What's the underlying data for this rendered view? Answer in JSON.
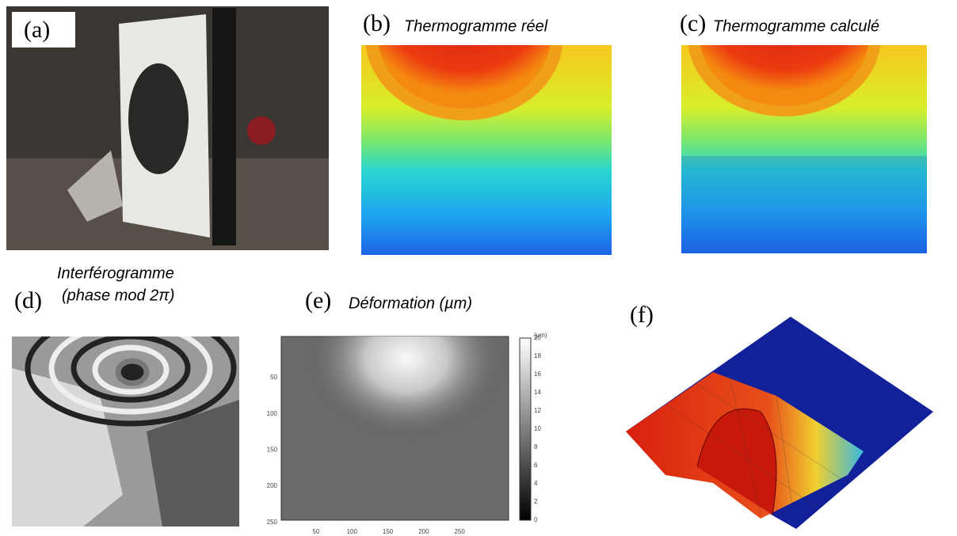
{
  "panels": [
    {
      "label": "(a)"
    },
    {
      "label": "(b)",
      "title": "Thermogramme réel"
    },
    {
      "label": "(c)",
      "title": "Thermogramme calculé"
    },
    {
      "label": "(d)",
      "title_lines": [
        "Interférogramme",
        "(phase mod 2π)"
      ]
    },
    {
      "label": "(e)",
      "title": "Déformation (µm)",
      "y_ticks": [
        "50",
        "100",
        "150",
        "200",
        "250"
      ],
      "x_ticks": [
        "50",
        "100",
        "150",
        "200",
        "250"
      ],
      "colorbar_unit": "(µm)",
      "colorbar_ticks": [
        "0",
        "2",
        "4",
        "6",
        "8",
        "10",
        "12",
        "14",
        "16",
        "18",
        "20"
      ]
    },
    {
      "label": "(f)"
    }
  ]
}
